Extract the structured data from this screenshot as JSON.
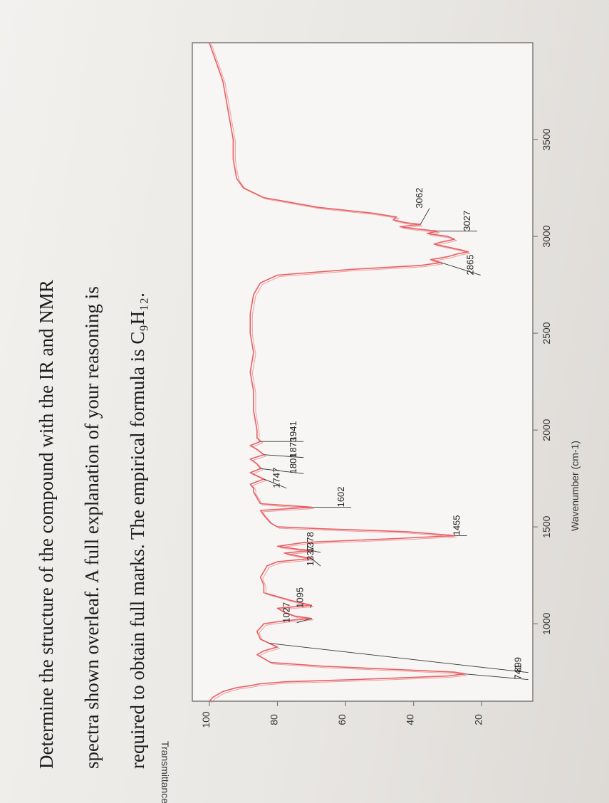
{
  "question": {
    "lines": [
      "Determine the structure of the compound with the IR and NMR",
      "spectra shown overleaf. A full explanation of your reasoning is",
      "required to obtain full marks. The empirical formula is C₉H₁₂."
    ]
  },
  "colors": {
    "spectrum": "#e8565c",
    "frame": "#7a7a7a",
    "text": "#1c1c1c",
    "plot_bg": "#f7f6f4"
  },
  "chart_data": {
    "type": "line",
    "xlabel": "Wavenumber (cm-1)",
    "ylabel": "Transmittance",
    "xlim": [
      4000,
      600
    ],
    "x_reversed": true,
    "ylim": [
      5,
      105
    ],
    "xticks": [
      3500,
      3000,
      2500,
      2000,
      1500,
      1000
    ],
    "yticks": [
      20,
      40,
      60,
      80,
      100
    ],
    "grid": false,
    "series": [
      {
        "x": [
          4000,
          3900,
          3800,
          3700,
          3600,
          3500,
          3400,
          3300,
          3250,
          3200,
          3150,
          3120,
          3100,
          3085,
          3070,
          3062,
          3050,
          3040,
          3027,
          3015,
          3000,
          2985,
          2970,
          2960,
          2945,
          2930,
          2920,
          2910,
          2895,
          2880,
          2865,
          2850,
          2830,
          2800,
          2760,
          2700,
          2600,
          2500,
          2400,
          2300,
          2200,
          2100,
          2000,
          1960,
          1941,
          1920,
          1900,
          1873,
          1850,
          1825,
          1801,
          1780,
          1747,
          1720,
          1700,
          1680,
          1650,
          1620,
          1602,
          1585,
          1560,
          1520,
          1500,
          1490,
          1475,
          1455,
          1440,
          1420,
          1400,
          1385,
          1378,
          1365,
          1350,
          1337,
          1320,
          1300,
          1270,
          1240,
          1200,
          1160,
          1120,
          1095,
          1080,
          1060,
          1040,
          1027,
          1015,
          1000,
          960,
          920,
          880,
          860,
          840,
          820,
          800,
          780,
          760,
          750,
          741,
          730,
          720,
          710,
          700,
          690,
          680,
          670,
          660,
          650,
          640,
          630,
          620,
          600
        ],
        "y": [
          100,
          98,
          96,
          95,
          94,
          93,
          93,
          92,
          90,
          84,
          68,
          52,
          45,
          46,
          42,
          38,
          44,
          40,
          33,
          36,
          30,
          28,
          32,
          34,
          30,
          26,
          24,
          27,
          30,
          35,
          32,
          38,
          58,
          80,
          85,
          87,
          88,
          88,
          87,
          88,
          87,
          87,
          86,
          86,
          85,
          88,
          86,
          84,
          88,
          86,
          85,
          88,
          84,
          88,
          87,
          87,
          86,
          85,
          70,
          85,
          84,
          82,
          80,
          66,
          42,
          28,
          45,
          72,
          80,
          74,
          70,
          78,
          74,
          70,
          80,
          83,
          84,
          85,
          84,
          84,
          76,
          70,
          80,
          78,
          75,
          70,
          78,
          84,
          86,
          85,
          80,
          84,
          86,
          84,
          82,
          66,
          40,
          28,
          25,
          30,
          45,
          60,
          78,
          85,
          88,
          92,
          94,
          96,
          97,
          98,
          99,
          100
        ]
      }
    ],
    "annotations": [
      "899",
      "741",
      "1027",
      "1095",
      "1337",
      "1378",
      "1455",
      "1602",
      "1747",
      "1801",
      "1873",
      "1941",
      "2865",
      "3027",
      "3062"
    ]
  }
}
